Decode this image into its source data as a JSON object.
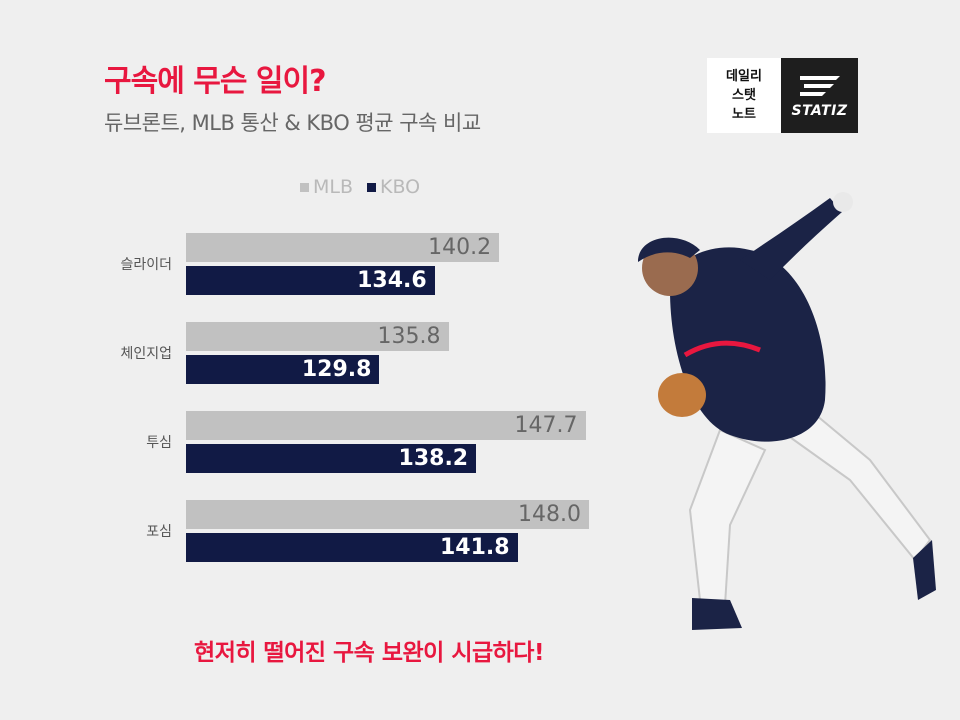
{
  "header": {
    "title": "구속에 무슨 일이?",
    "subtitle": "듀브론트, MLB 통산 & KBO 평균 구속 비교"
  },
  "brand": {
    "lines": [
      "데일리",
      "스탯",
      "노트"
    ],
    "wordmark": "STATIZ"
  },
  "chart_data": {
    "type": "bar",
    "orientation": "horizontal",
    "title": "",
    "categories": [
      "슬라이더",
      "체인지업",
      "투심",
      "포심"
    ],
    "series": [
      {
        "name": "MLB",
        "color": "#c1c1c1",
        "values": [
          140.2,
          135.8,
          147.7,
          148.0
        ],
        "labels": [
          "140.2",
          "135.8",
          "147.7",
          "148.0"
        ]
      },
      {
        "name": "KBO",
        "color": "#111a45",
        "values": [
          134.6,
          129.8,
          138.2,
          141.8
        ],
        "labels": [
          "134.6",
          "129.8",
          "138.2",
          "141.8"
        ]
      }
    ],
    "xlim": [
      113,
      150
    ],
    "legend": "top-center",
    "grid": false
  },
  "footer": {
    "text": "현저히 떨어진 구속 보완이 시급하다!"
  }
}
